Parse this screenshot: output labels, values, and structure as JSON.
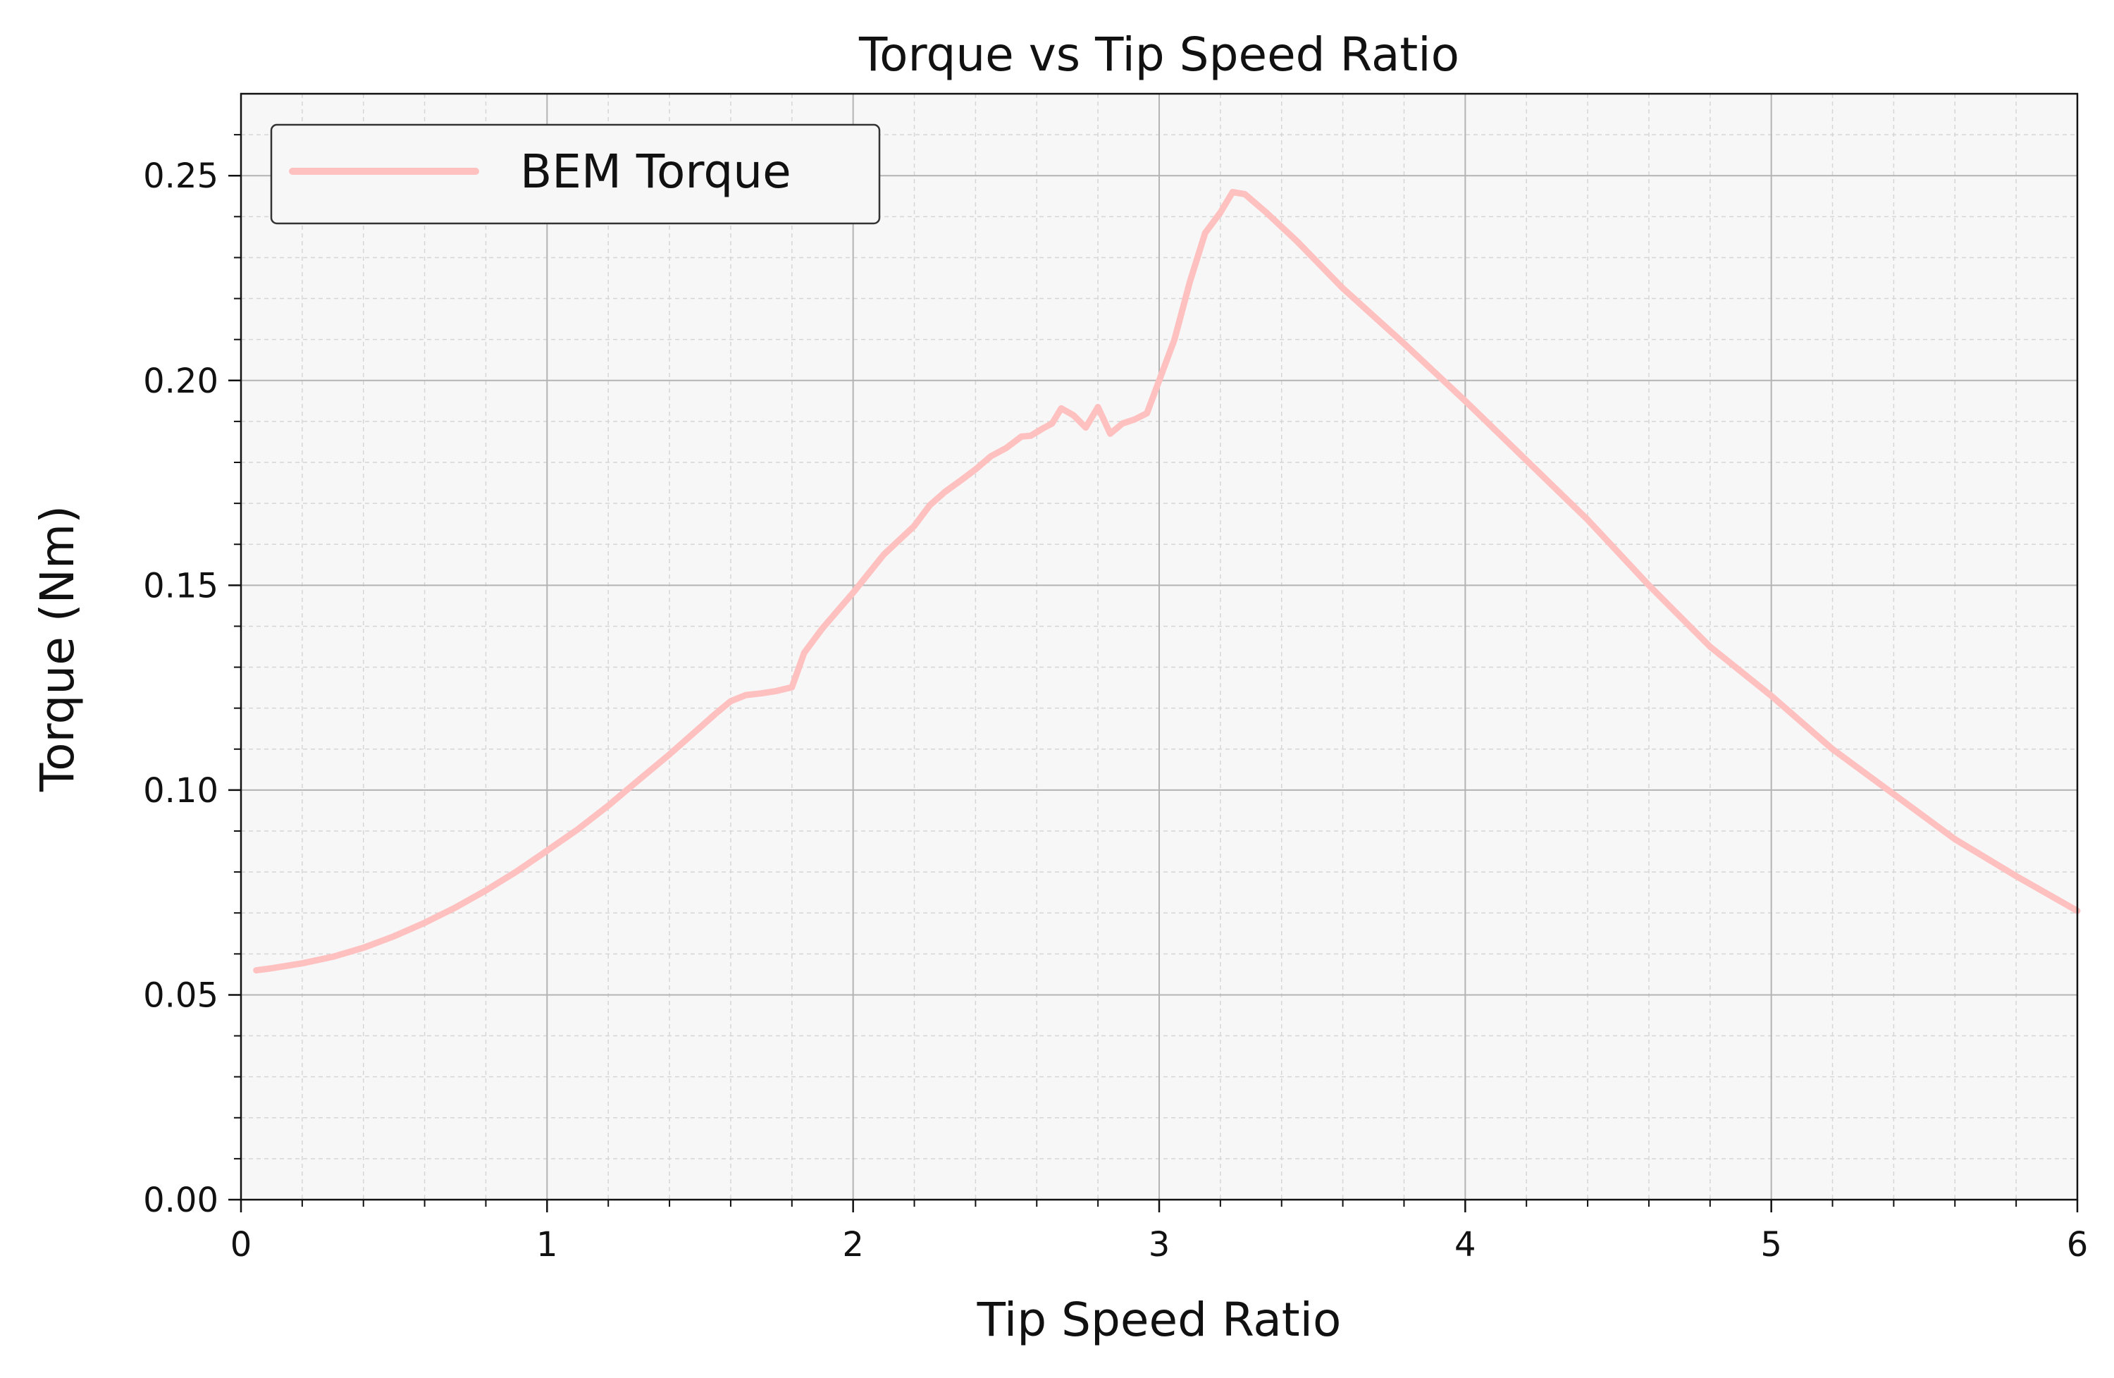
{
  "chart_data": {
    "type": "line",
    "title": "Torque vs Tip Speed Ratio",
    "xlabel": "Tip Speed Ratio",
    "ylabel": "Torque (Nm)",
    "xlim": [
      0,
      6
    ],
    "ylim": [
      0,
      0.27
    ],
    "x_ticks": [
      0,
      1,
      2,
      3,
      4,
      5,
      6
    ],
    "x_tick_labels": [
      "0",
      "1",
      "2",
      "3",
      "4",
      "5",
      "6"
    ],
    "y_ticks": [
      0.0,
      0.05,
      0.1,
      0.15,
      0.2,
      0.25
    ],
    "y_tick_labels": [
      "0.00",
      "0.05",
      "0.10",
      "0.15",
      "0.20",
      "0.25"
    ],
    "grid": true,
    "minor_grid": true,
    "legend_position": "top-left",
    "background_color": "#f7f7f7",
    "series": [
      {
        "name": "BEM Torque",
        "color": "#ffc0c0",
        "x": [
          0.05,
          0.1,
          0.2,
          0.3,
          0.4,
          0.5,
          0.6,
          0.7,
          0.8,
          0.9,
          1.0,
          1.1,
          1.2,
          1.3,
          1.4,
          1.5,
          1.55,
          1.6,
          1.65,
          1.7,
          1.75,
          1.8,
          1.84,
          1.9,
          2.0,
          2.1,
          2.2,
          2.25,
          2.3,
          2.35,
          2.4,
          2.45,
          2.5,
          2.55,
          2.58,
          2.62,
          2.65,
          2.68,
          2.72,
          2.76,
          2.8,
          2.84,
          2.88,
          2.92,
          2.96,
          3.0,
          3.05,
          3.1,
          3.15,
          3.2,
          3.24,
          3.28,
          3.35,
          3.45,
          3.6,
          3.8,
          4.0,
          4.2,
          4.4,
          4.6,
          4.8,
          5.0,
          5.2,
          5.4,
          5.6,
          5.8,
          6.0
        ],
        "values": [
          0.056,
          0.0565,
          0.0577,
          0.0593,
          0.0615,
          0.0643,
          0.0676,
          0.0713,
          0.0755,
          0.0801,
          0.0852,
          0.0904,
          0.0962,
          0.1025,
          0.1087,
          0.1153,
          0.1186,
          0.1217,
          0.1232,
          0.1236,
          0.1242,
          0.1251,
          0.1335,
          0.1395,
          0.1482,
          0.1575,
          0.1645,
          0.1695,
          0.1728,
          0.1755,
          0.1783,
          0.1815,
          0.1835,
          0.1863,
          0.1865,
          0.1883,
          0.1895,
          0.1932,
          0.1915,
          0.1885,
          0.1935,
          0.187,
          0.1895,
          0.1905,
          0.192,
          0.2,
          0.21,
          0.224,
          0.236,
          0.241,
          0.246,
          0.2455,
          0.241,
          0.234,
          0.2225,
          0.209,
          0.195,
          0.1805,
          0.166,
          0.15,
          0.135,
          0.123,
          0.11,
          0.099,
          0.088,
          0.079,
          0.0705
        ]
      }
    ]
  }
}
